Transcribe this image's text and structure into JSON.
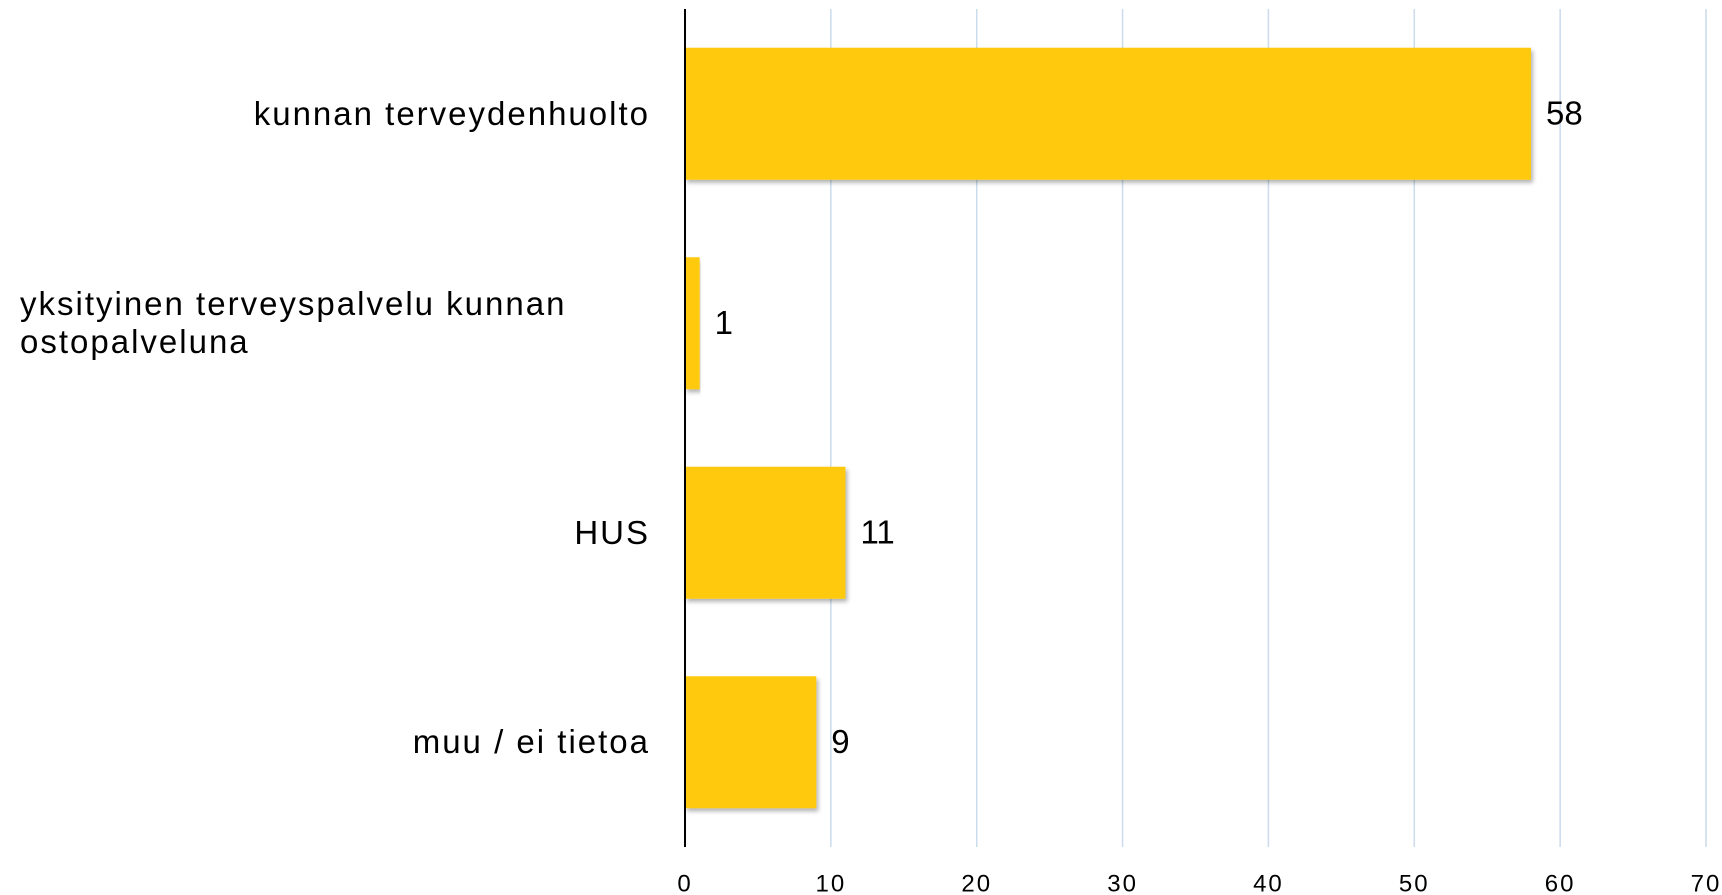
{
  "chart_data": {
    "type": "barh",
    "categories": [
      "kunnan terveydenhuolto",
      "yksityinen terveyspalvelu kunnan ostopalveluna",
      "HUS",
      "muu / ei tietoa"
    ],
    "values": [
      58,
      1,
      11,
      9
    ],
    "color": "#ffca0a",
    "xlim": [
      0,
      70
    ],
    "xticks": [
      0,
      10,
      20,
      30,
      40,
      50,
      60,
      70
    ],
    "grid": true
  }
}
